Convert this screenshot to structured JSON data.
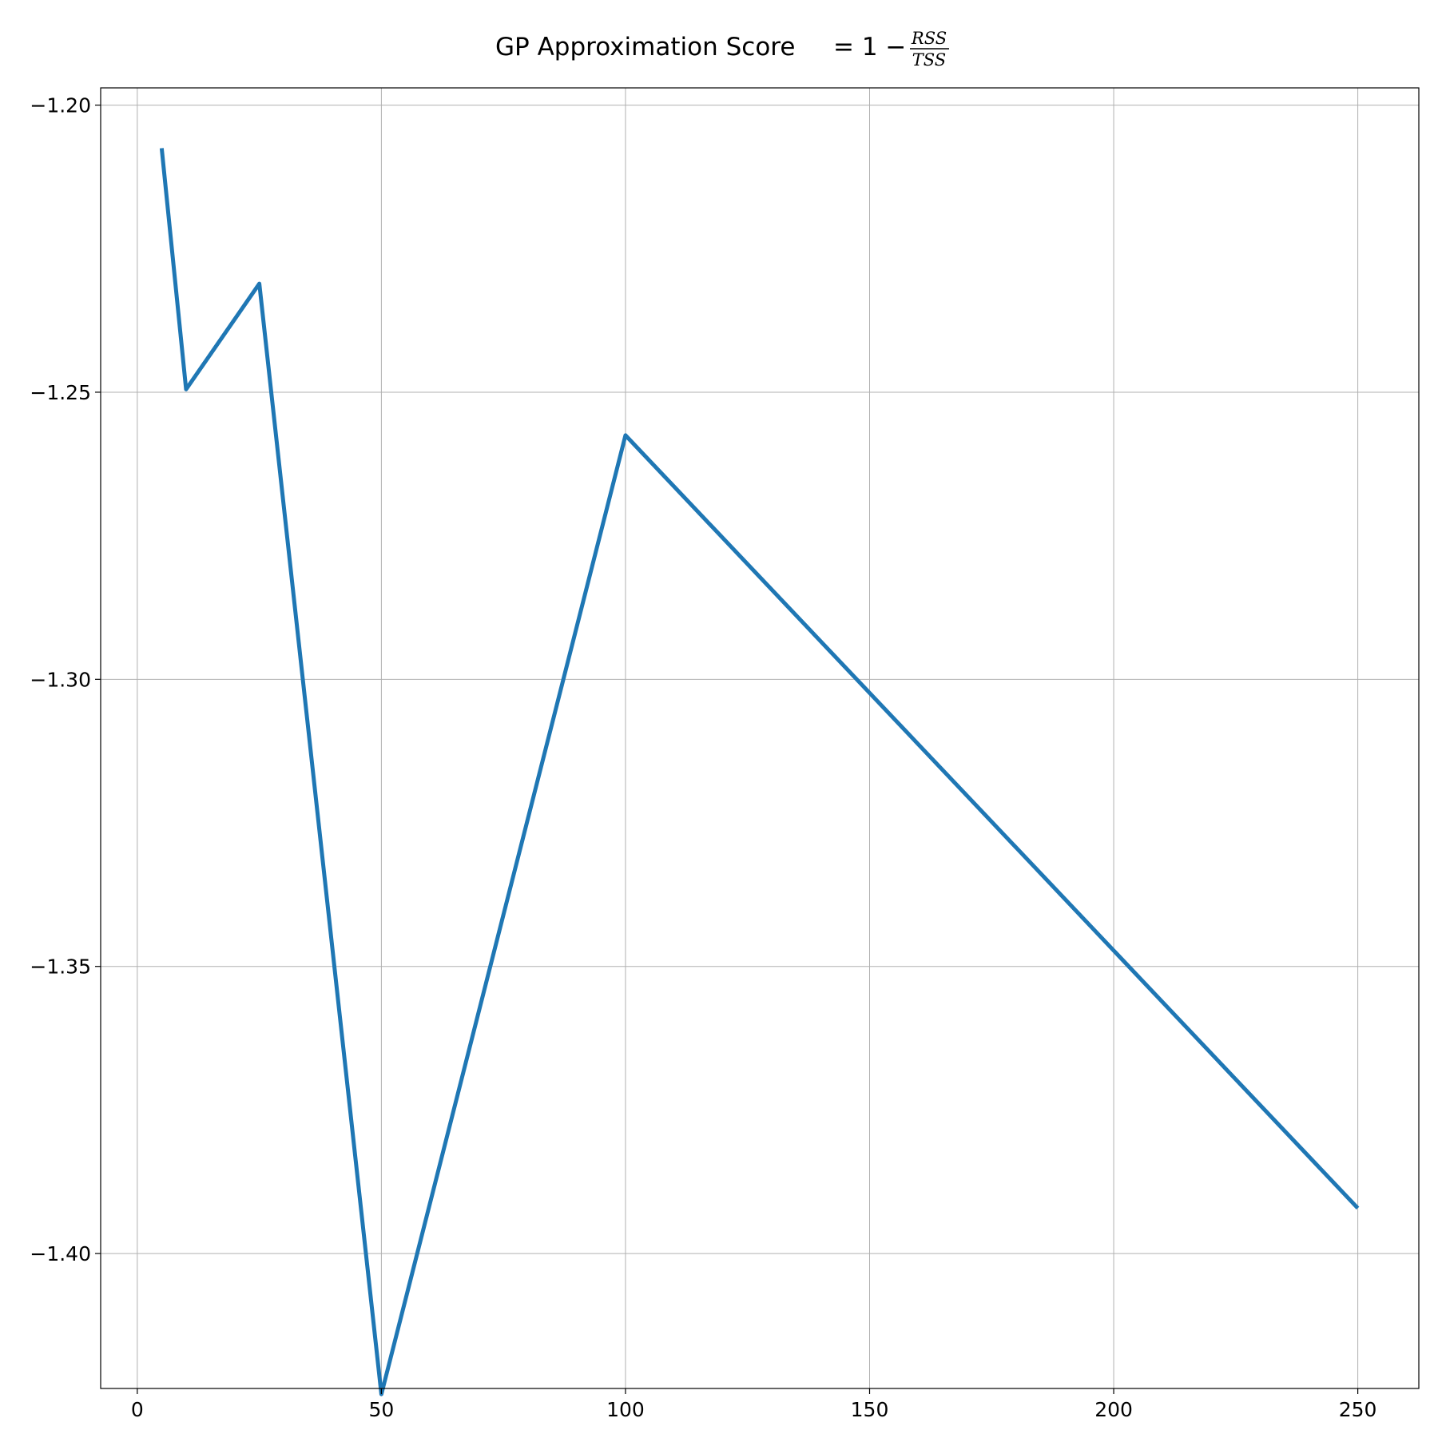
{
  "chart_data": {
    "type": "line",
    "title": {
      "prefix": "GP Approximation Score",
      "equation": "= 1 −",
      "numerator": "RSS",
      "denominator": "TSS"
    },
    "xlabel": "",
    "ylabel": "",
    "xlim": [
      -7.5,
      262.5
    ],
    "ylim": [
      -1.4235,
      -1.197
    ],
    "xticks": [
      0,
      50,
      100,
      150,
      200,
      250
    ],
    "xtick_labels": [
      "0",
      "50",
      "100",
      "150",
      "200",
      "250"
    ],
    "yticks": [
      -1.2,
      -1.25,
      -1.3,
      -1.35,
      -1.4
    ],
    "ytick_labels": [
      "−1.20",
      "−1.25",
      "−1.30",
      "−1.35",
      "−1.40"
    ],
    "grid": true,
    "legend": "none",
    "series": [
      {
        "color": "#1f77b4",
        "x": [
          5,
          10,
          25,
          50,
          100,
          250
        ],
        "y": [
          -1.2075,
          -1.2495,
          -1.2311,
          -1.4245,
          -1.2575,
          -1.3921
        ]
      }
    ]
  }
}
